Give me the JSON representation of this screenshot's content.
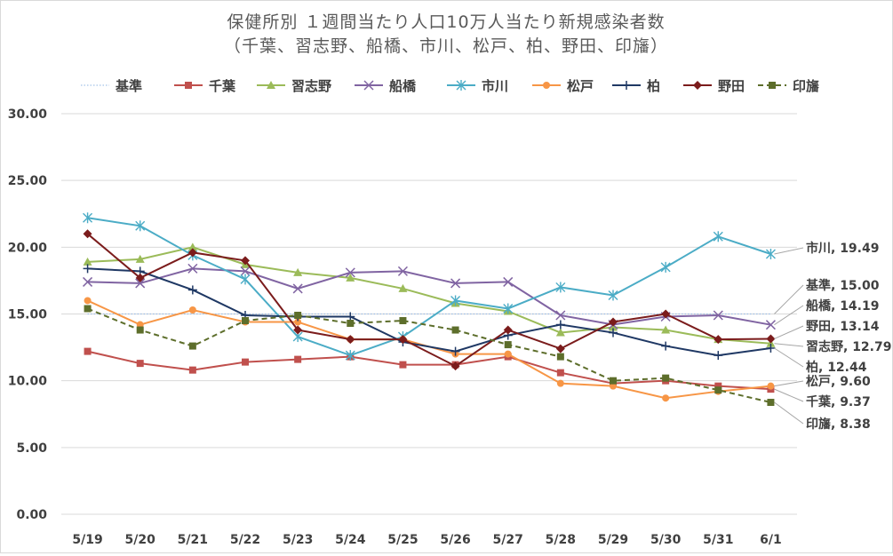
{
  "chart_data": {
    "type": "line",
    "title": "保健所別 １週間当たり人口10万人当たり新規感染者数",
    "subtitle": "（千葉、習志野、船橋、市川、松戸、柏、野田、印旛）",
    "categories": [
      "5/19",
      "5/20",
      "5/21",
      "5/22",
      "5/23",
      "5/24",
      "5/25",
      "5/26",
      "5/27",
      "5/28",
      "5/29",
      "5/30",
      "5/31",
      "6/1"
    ],
    "ylim": [
      0,
      30
    ],
    "yticks": [
      "0.00",
      "5.00",
      "10.00",
      "15.00",
      "20.00",
      "25.00",
      "30.00"
    ],
    "legend_position": "top",
    "series": [
      {
        "name": "基準",
        "color": "#8eb4e3",
        "marker": "none",
        "dash": "dot",
        "values": [
          15,
          15,
          15,
          15,
          15,
          15,
          15,
          15,
          15,
          15,
          15,
          15,
          15,
          15
        ],
        "end_label": "基準, 15.00"
      },
      {
        "name": "千葉",
        "color": "#c0504d",
        "marker": "square",
        "dash": "solid",
        "values": [
          12.2,
          11.3,
          10.8,
          11.4,
          11.6,
          11.8,
          11.2,
          11.2,
          11.8,
          10.6,
          9.8,
          10.0,
          9.6,
          9.37
        ],
        "end_label": "千葉, 9.37"
      },
      {
        "name": "習志野",
        "color": "#9bbb59",
        "marker": "triangle",
        "dash": "solid",
        "values": [
          18.9,
          19.1,
          20.0,
          18.7,
          18.1,
          17.7,
          16.9,
          15.8,
          15.2,
          13.6,
          14.0,
          13.8,
          13.1,
          12.79
        ],
        "end_label": "習志野, 12.79"
      },
      {
        "name": "船橋",
        "color": "#8064a2",
        "marker": "x",
        "dash": "solid",
        "values": [
          17.4,
          17.3,
          18.4,
          18.2,
          16.9,
          18.1,
          18.2,
          17.3,
          17.4,
          14.9,
          14.2,
          14.8,
          14.9,
          14.19
        ],
        "end_label": "船橋, 14.19"
      },
      {
        "name": "市川",
        "color": "#4bacc6",
        "marker": "star",
        "dash": "solid",
        "values": [
          22.2,
          21.6,
          19.4,
          17.6,
          13.3,
          11.9,
          13.3,
          16.0,
          15.4,
          17.0,
          16.4,
          18.5,
          20.8,
          19.49
        ],
        "end_label": "市川, 19.49"
      },
      {
        "name": "松戸",
        "color": "#f79646",
        "marker": "circle",
        "dash": "solid",
        "values": [
          16.0,
          14.2,
          15.3,
          14.4,
          14.4,
          13.1,
          13.1,
          12.0,
          12.0,
          9.8,
          9.6,
          8.7,
          9.2,
          9.6
        ],
        "end_label": "松戸, 9.60"
      },
      {
        "name": "柏",
        "color": "#1f3864",
        "marker": "plus",
        "dash": "solid",
        "values": [
          18.4,
          18.2,
          16.8,
          14.9,
          14.8,
          14.8,
          12.9,
          12.2,
          13.4,
          14.2,
          13.6,
          12.6,
          11.9,
          12.44
        ],
        "end_label": "柏, 12.44"
      },
      {
        "name": "野田",
        "color": "#7b1c1c",
        "marker": "diamond",
        "dash": "solid",
        "values": [
          21.0,
          17.7,
          19.6,
          19.0,
          13.8,
          13.1,
          13.1,
          11.1,
          13.8,
          12.4,
          14.4,
          15.0,
          13.1,
          13.14
        ],
        "end_label": "野田, 13.14"
      },
      {
        "name": "印旛",
        "color": "#5d6e2b",
        "marker": "square",
        "dash": "dash",
        "values": [
          15.4,
          13.8,
          12.6,
          14.5,
          14.9,
          14.3,
          14.5,
          13.8,
          12.7,
          11.8,
          10.0,
          10.2,
          9.3,
          8.38
        ],
        "end_label": "印旛, 8.38"
      }
    ]
  }
}
